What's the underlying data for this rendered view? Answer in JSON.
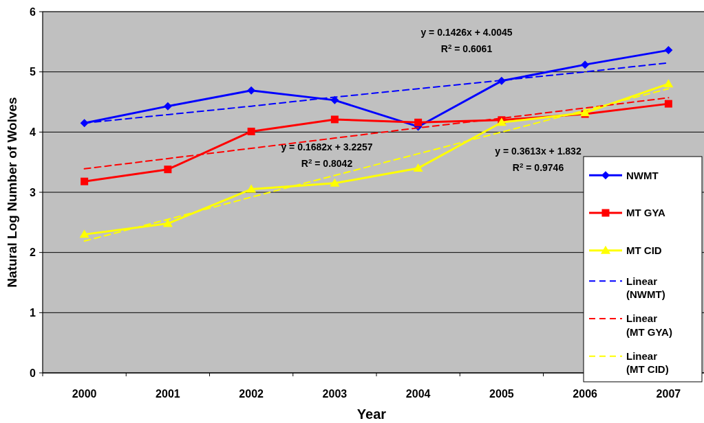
{
  "chart_data": {
    "type": "line",
    "xlabel": "Year",
    "ylabel": "Natural Log Number of Wolves",
    "categories": [
      "2000",
      "2001",
      "2002",
      "2003",
      "2004",
      "2005",
      "2006",
      "2007"
    ],
    "ylim": [
      0,
      6
    ],
    "yticks": [
      0,
      1,
      2,
      3,
      4,
      5,
      6
    ],
    "grid": "y",
    "legend": "right",
    "series": [
      {
        "name": "NWMT",
        "color": "#0000ff",
        "marker": "diamond",
        "values": [
          4.15,
          4.43,
          4.69,
          4.53,
          4.09,
          4.85,
          5.12,
          5.36
        ]
      },
      {
        "name": "MT GYA",
        "color": "#ff0000",
        "marker": "square",
        "values": [
          3.18,
          3.38,
          4.01,
          4.21,
          4.16,
          4.2,
          4.3,
          4.47
        ]
      },
      {
        "name": "MT CID",
        "color": "#ffff00",
        "marker": "triangle",
        "values": [
          2.3,
          2.48,
          3.05,
          3.15,
          3.4,
          4.16,
          4.32,
          4.8
        ]
      },
      {
        "name": "Linear (NWMT)",
        "color": "#0000ff",
        "marker": "none",
        "line_style": "dashed",
        "values": [
          4.15,
          4.29,
          4.43,
          4.58,
          4.72,
          4.86,
          5.0,
          5.15
        ]
      },
      {
        "name": "Linear (MT GYA)",
        "color": "#ff0000",
        "marker": "none",
        "line_style": "dashed",
        "values": [
          3.39,
          3.56,
          3.73,
          3.9,
          4.07,
          4.23,
          4.4,
          4.57
        ]
      },
      {
        "name": "Linear (MT CID)",
        "color": "#ffff00",
        "marker": "none",
        "line_style": "dashed",
        "values": [
          2.19,
          2.55,
          2.92,
          3.28,
          3.64,
          4.0,
          4.36,
          4.72
        ]
      }
    ],
    "annotations": [
      "y = 0.1426x + 4.0045",
      "R$^{2}$ = 0.6061",
      "y = 0.1682x + 3.2257",
      "R$^{2}$ = 0.8042",
      "y = 0.3613x + 1.832",
      "R$^{2}$ = 0.9746"
    ]
  }
}
